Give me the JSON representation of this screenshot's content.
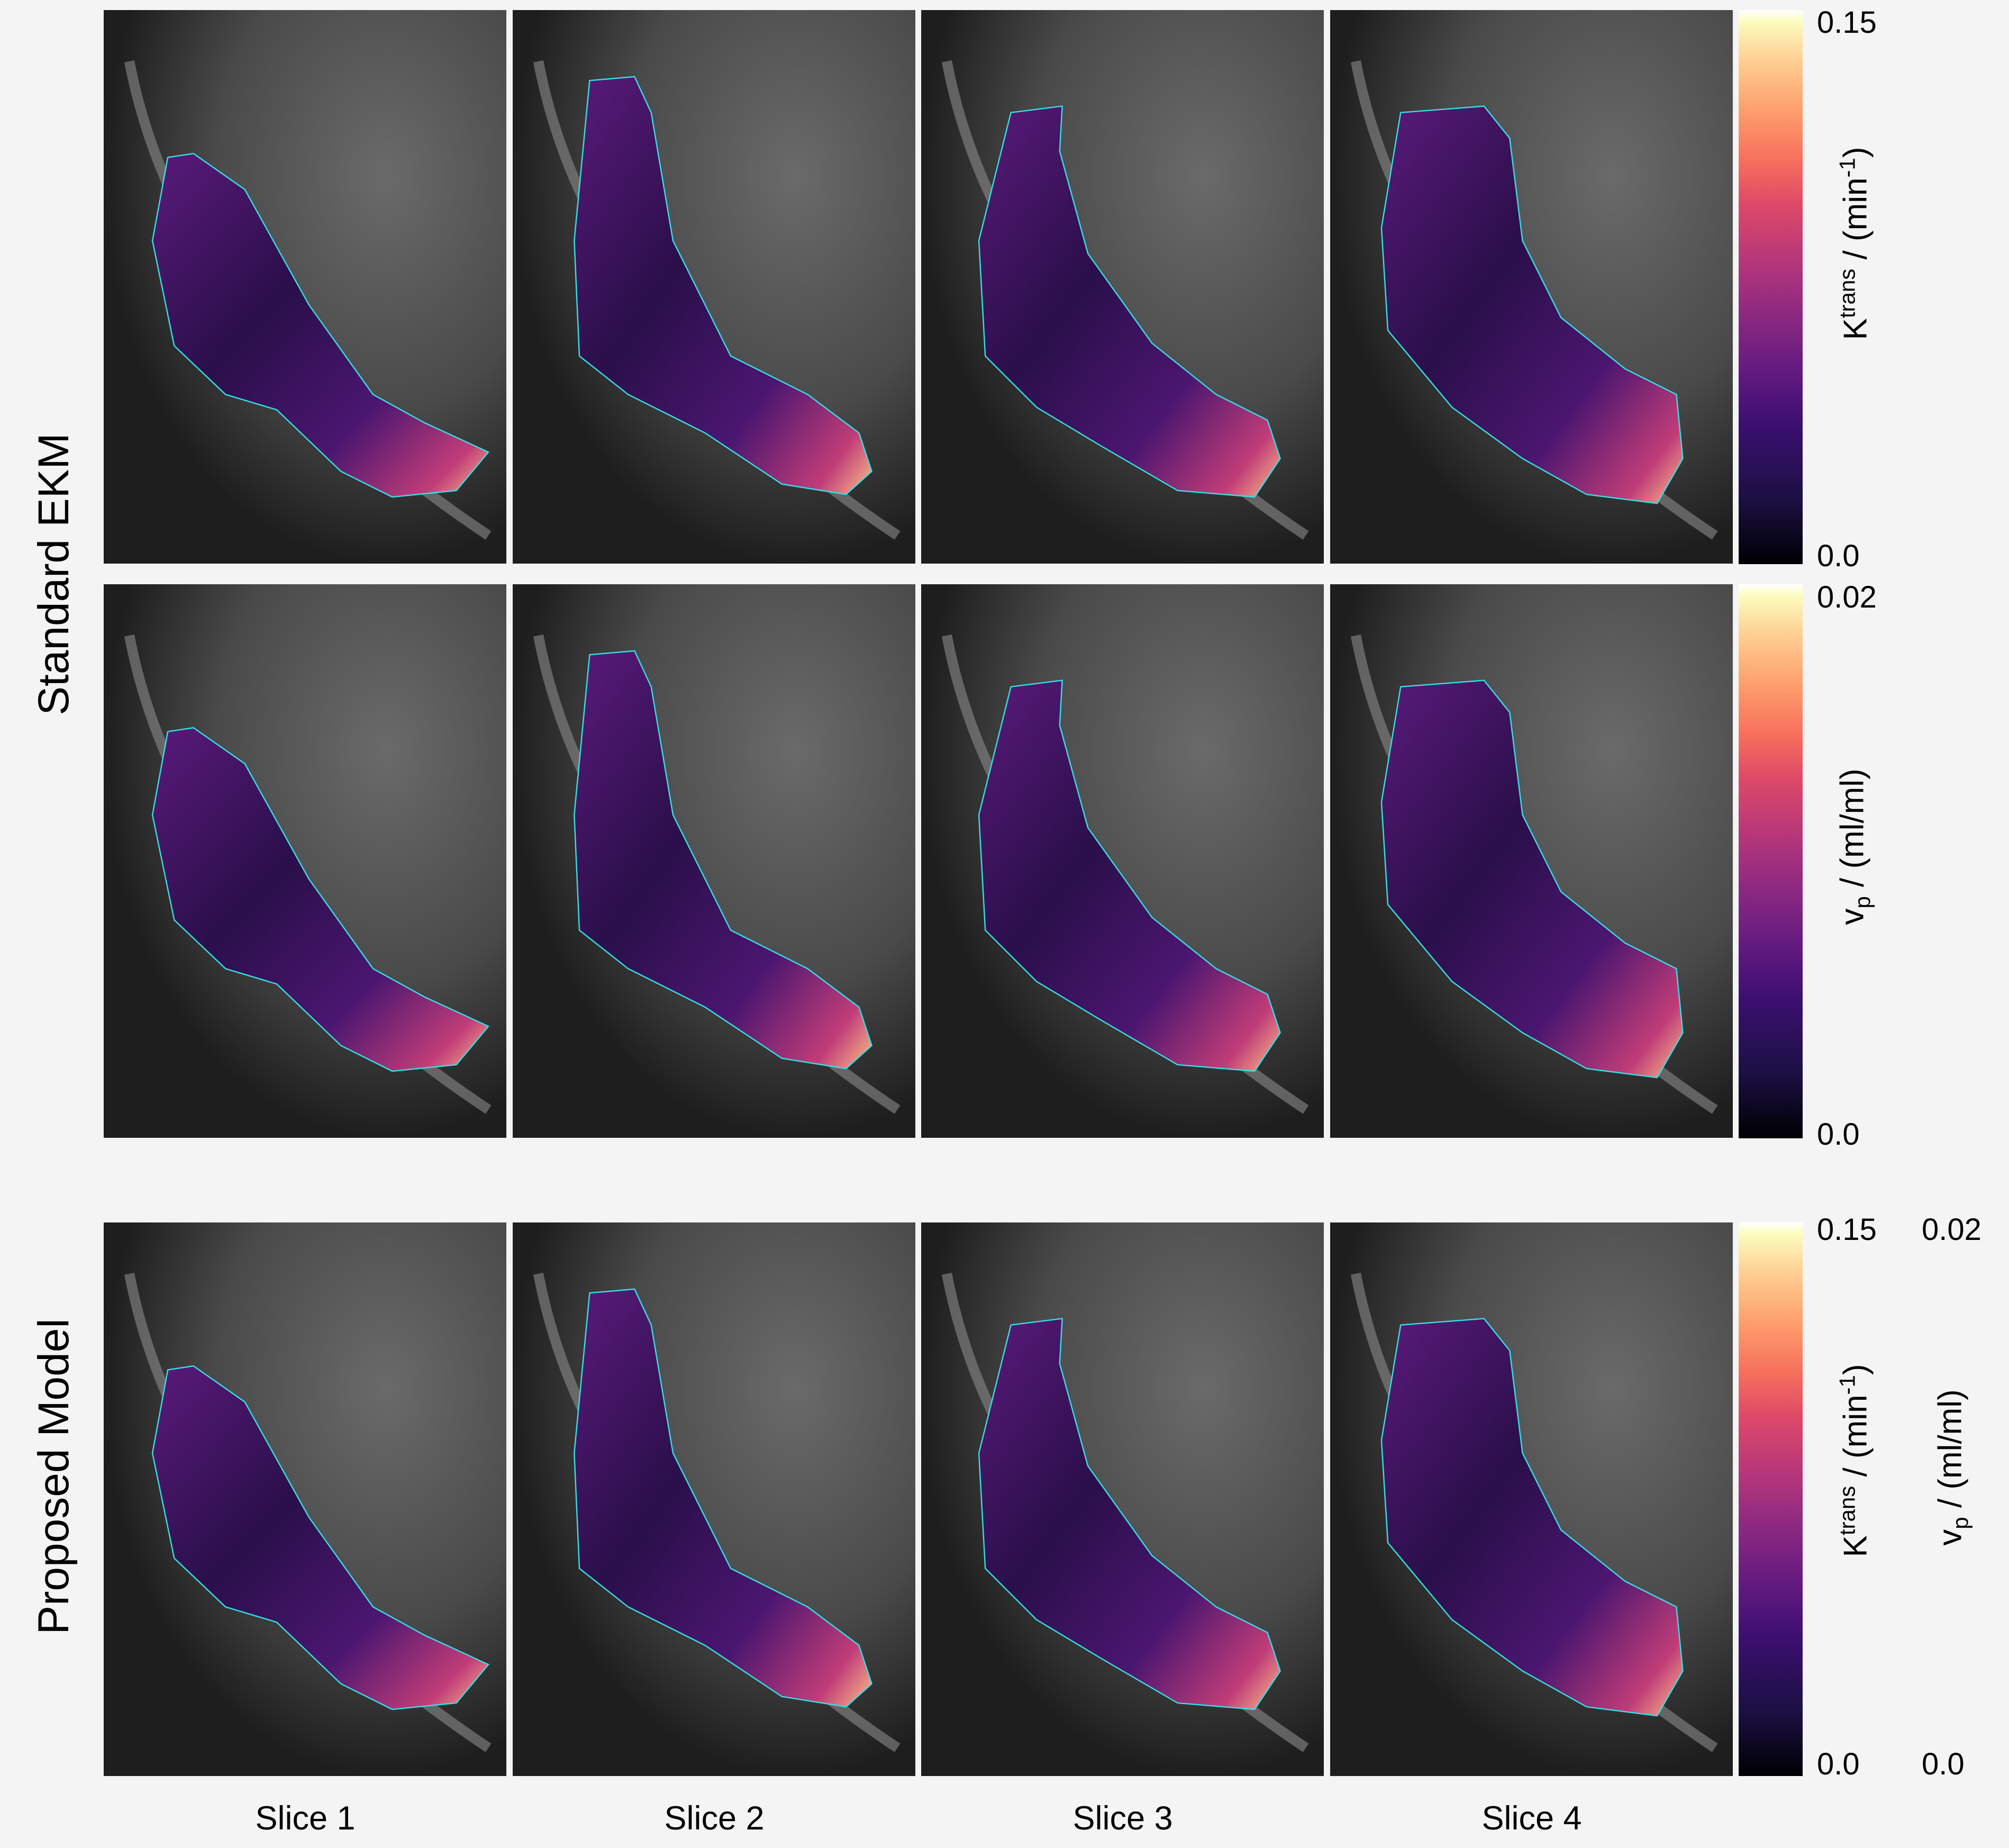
{
  "row_labels": [
    "Standard EKM",
    "Proposed Model"
  ],
  "column_labels": [
    "Slice 1",
    "Slice 2",
    "Slice 3",
    "Slice 4"
  ],
  "colorbars": {
    "ktrans": {
      "symbol": "K",
      "superscript": "trans",
      "unit_prefix": " / (min",
      "unit_superscript": "-1",
      "unit_suffix": ")",
      "max": "0.15",
      "min": "0.0"
    },
    "vp": {
      "symbol": "v",
      "subscript": "p",
      "unit": " / (ml/ml)",
      "max": "0.02",
      "min": "0.0"
    },
    "colormap": "magma"
  },
  "colors": {
    "outline": "#34e0e6",
    "background": "#f4f4f4"
  }
}
